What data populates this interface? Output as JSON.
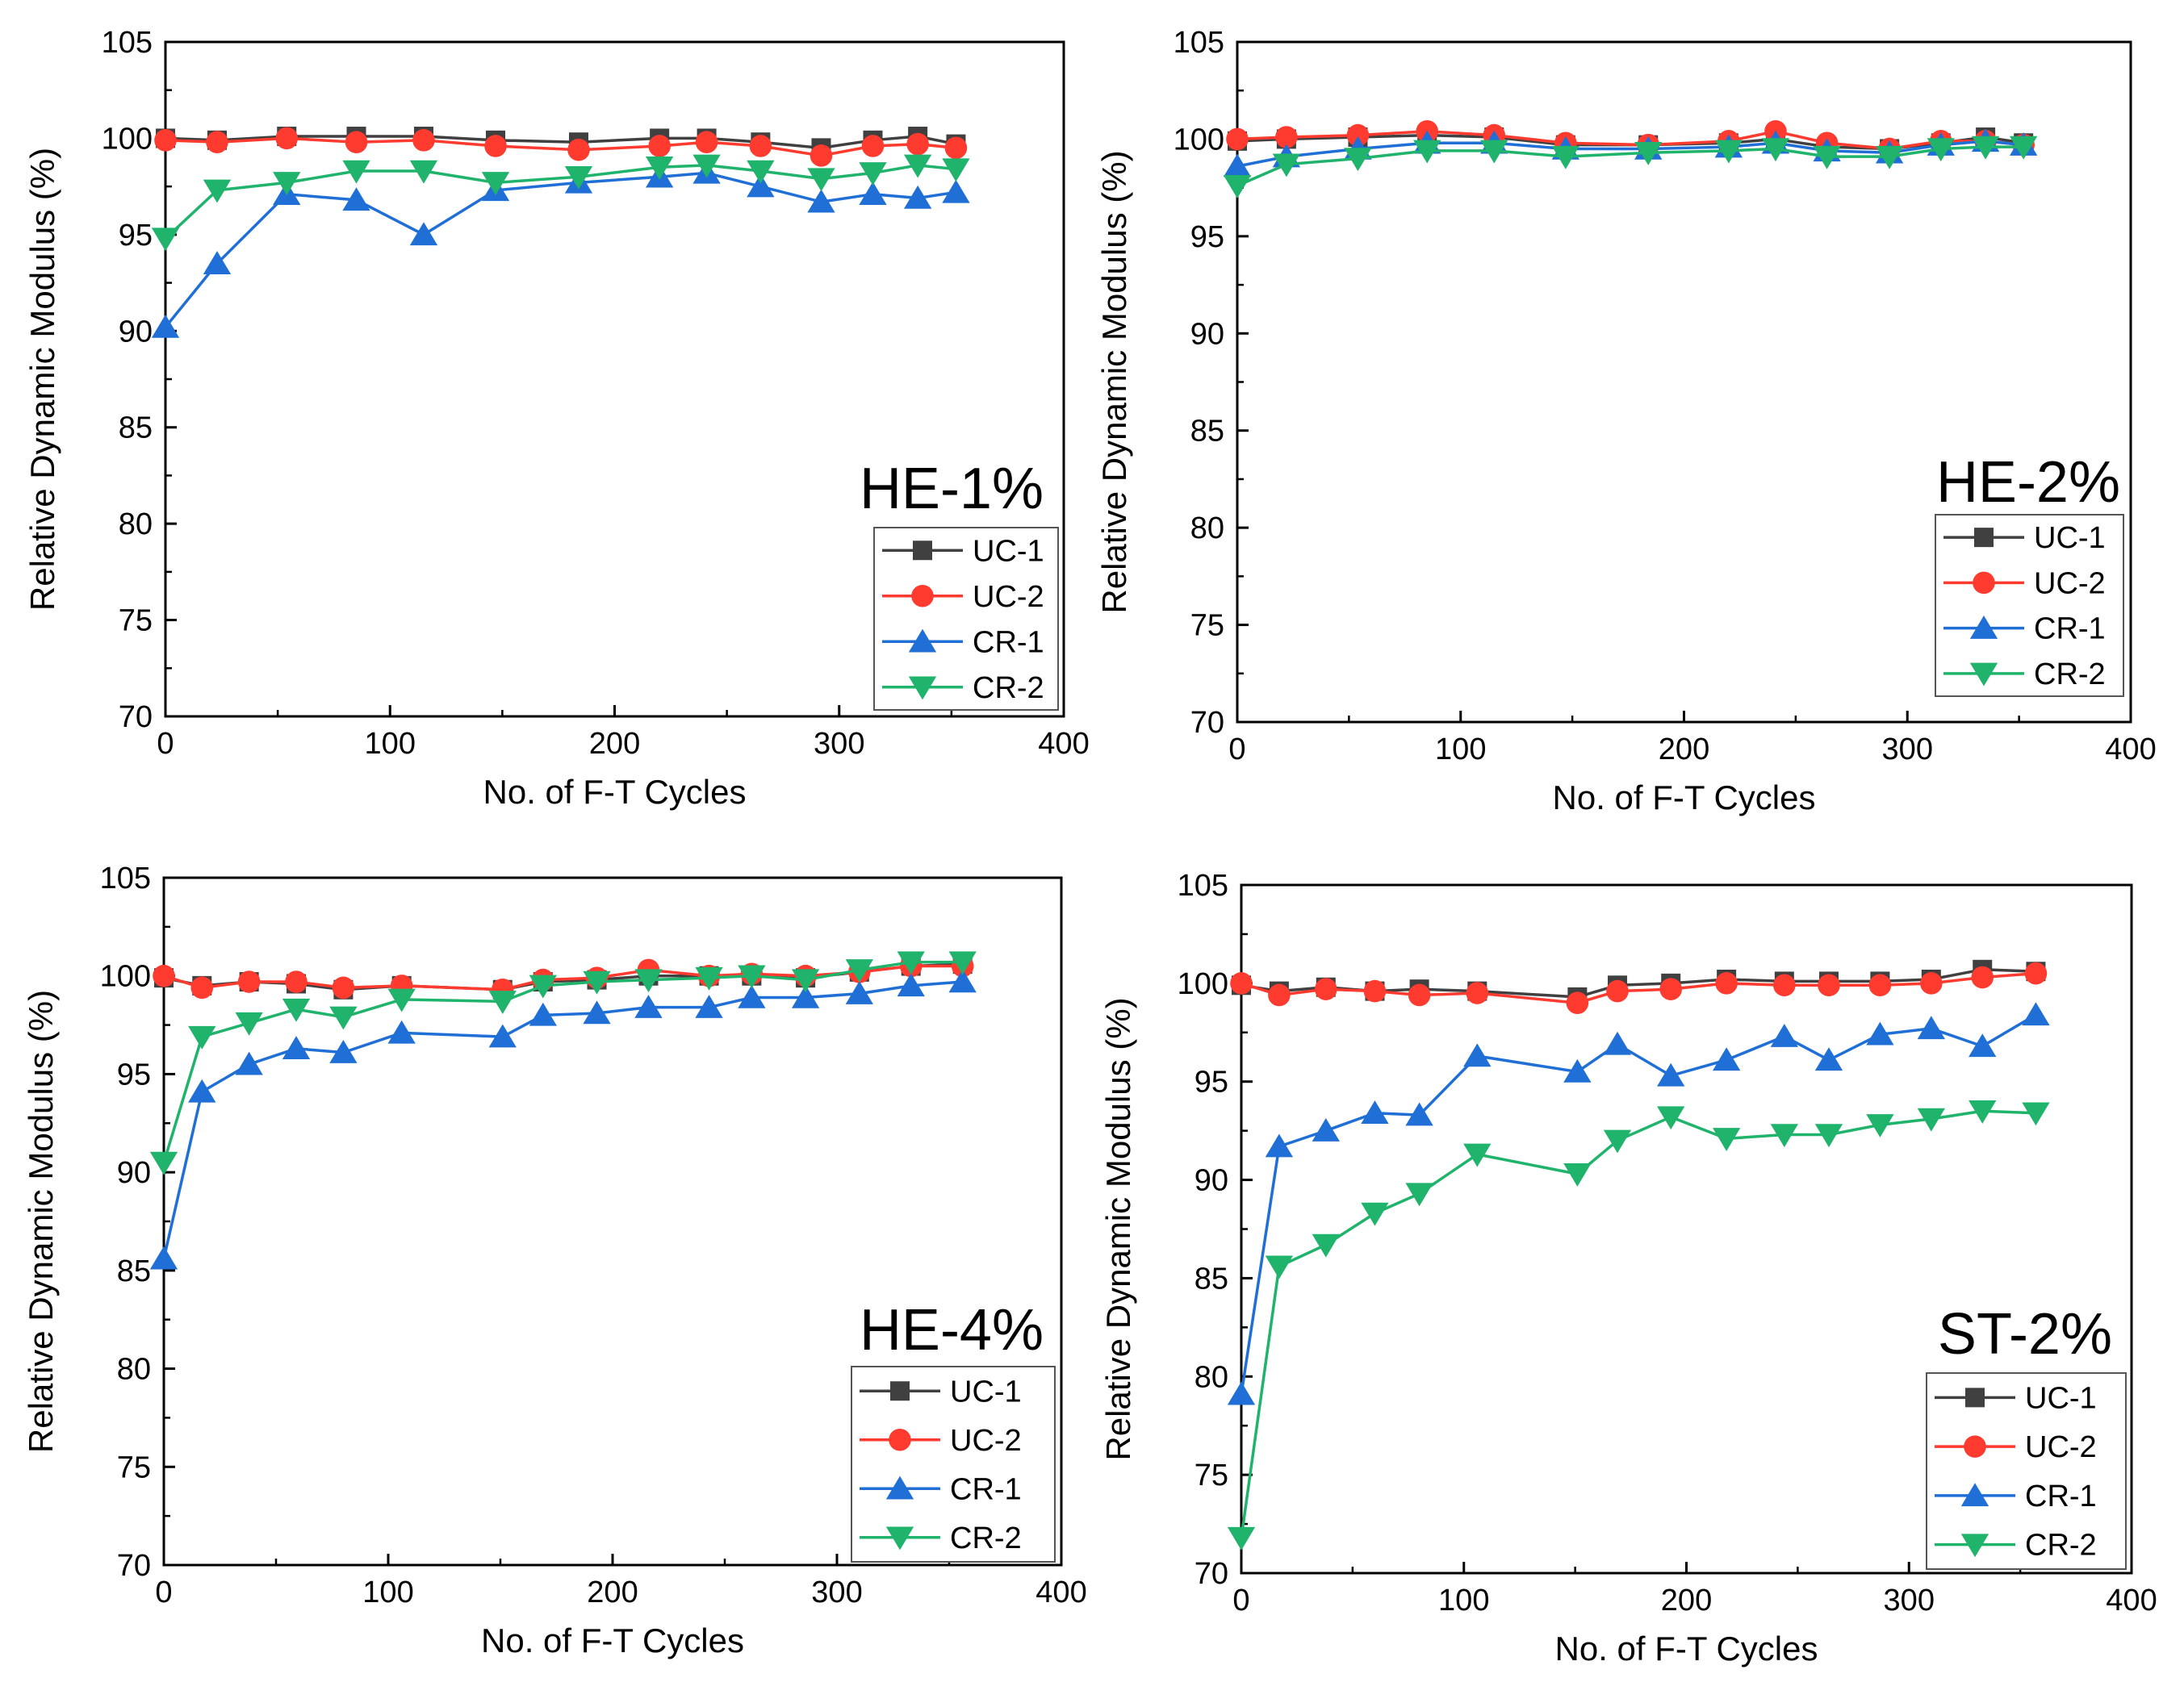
{
  "chart_data": [
    {
      "type": "line",
      "title": "HE-1%",
      "xlabel": "No. of F-T Cycles",
      "ylabel": "Relative Dynamic Modulus (%)",
      "xlim": [
        0,
        400
      ],
      "ylim": [
        70,
        105
      ],
      "xticks": [
        "0",
        "100",
        "200",
        "300",
        "400"
      ],
      "yticks": [
        "70",
        "75",
        "80",
        "85",
        "90",
        "95",
        "100",
        "105"
      ],
      "legend_position": "bottom-right",
      "series": [
        {
          "name": "UC-1",
          "marker": "square",
          "color": "#404040",
          "x": [
            0,
            23,
            54,
            85,
            115,
            147,
            184,
            220,
            241,
            265,
            292,
            315,
            335,
            352
          ],
          "y": [
            100.0,
            99.9,
            100.1,
            100.1,
            100.1,
            99.9,
            99.8,
            100.0,
            100.0,
            99.8,
            99.5,
            99.9,
            100.1,
            99.7
          ]
        },
        {
          "name": "UC-2",
          "marker": "circle",
          "color": "#ff3b30",
          "x": [
            0,
            23,
            54,
            85,
            115,
            147,
            184,
            220,
            241,
            265,
            292,
            315,
            335,
            352
          ],
          "y": [
            99.9,
            99.8,
            100.0,
            99.8,
            99.9,
            99.6,
            99.4,
            99.6,
            99.8,
            99.6,
            99.1,
            99.6,
            99.7,
            99.5
          ]
        },
        {
          "name": "CR-1",
          "marker": "triangle-up",
          "color": "#1f6fd6",
          "x": [
            0,
            23,
            54,
            85,
            115,
            147,
            184,
            220,
            241,
            265,
            292,
            315,
            335,
            352
          ],
          "y": [
            90.2,
            93.5,
            97.1,
            96.8,
            95.0,
            97.3,
            97.7,
            98.0,
            98.2,
            97.5,
            96.7,
            97.1,
            96.9,
            97.2
          ]
        },
        {
          "name": "CR-2",
          "marker": "triangle-down",
          "color": "#1fb36b",
          "x": [
            0,
            23,
            54,
            85,
            115,
            147,
            184,
            220,
            241,
            265,
            292,
            315,
            335,
            352
          ],
          "y": [
            94.8,
            97.3,
            97.7,
            98.3,
            98.3,
            97.7,
            98.0,
            98.5,
            98.6,
            98.3,
            97.9,
            98.2,
            98.6,
            98.4
          ]
        }
      ]
    },
    {
      "type": "line",
      "title": "HE-2%",
      "xlabel": "No. of F-T Cycles",
      "ylabel": "Relative Dynamic Modulus (%)",
      "xlim": [
        0,
        400
      ],
      "ylim": [
        70,
        105
      ],
      "xticks": [
        "0",
        "100",
        "200",
        "300",
        "400"
      ],
      "yticks": [
        "70",
        "75",
        "80",
        "85",
        "90",
        "95",
        "100",
        "105"
      ],
      "legend_position": "bottom-right",
      "series": [
        {
          "name": "UC-1",
          "marker": "square",
          "color": "#404040",
          "x": [
            0,
            22,
            54,
            85,
            115,
            147,
            184,
            220,
            241,
            264,
            292,
            315,
            335,
            352
          ],
          "y": [
            99.9,
            100.0,
            100.1,
            100.2,
            100.1,
            99.7,
            99.7,
            99.8,
            100.0,
            99.6,
            99.5,
            99.8,
            100.1,
            99.8
          ]
        },
        {
          "name": "UC-2",
          "marker": "circle",
          "color": "#ff3b30",
          "x": [
            0,
            22,
            54,
            85,
            115,
            147,
            184,
            220,
            241,
            264,
            292,
            315,
            335,
            352
          ],
          "y": [
            100.0,
            100.1,
            100.2,
            100.4,
            100.2,
            99.8,
            99.7,
            99.9,
            100.4,
            99.8,
            99.5,
            99.9,
            99.9,
            99.7
          ]
        },
        {
          "name": "CR-1",
          "marker": "triangle-up",
          "color": "#1f6fd6",
          "x": [
            0,
            22,
            54,
            85,
            115,
            147,
            184,
            220,
            241,
            264,
            292,
            315,
            335,
            352
          ],
          "y": [
            98.6,
            99.1,
            99.5,
            99.8,
            99.8,
            99.5,
            99.5,
            99.6,
            99.8,
            99.4,
            99.3,
            99.7,
            99.9,
            99.7
          ]
        },
        {
          "name": "CR-2",
          "marker": "triangle-down",
          "color": "#1fb36b",
          "x": [
            0,
            22,
            54,
            85,
            115,
            147,
            184,
            220,
            241,
            264,
            292,
            315,
            335,
            352
          ],
          "y": [
            97.6,
            98.7,
            99.0,
            99.4,
            99.4,
            99.1,
            99.3,
            99.4,
            99.5,
            99.1,
            99.1,
            99.5,
            99.6,
            99.6
          ]
        }
      ]
    },
    {
      "type": "line",
      "title": "HE-4%",
      "xlabel": "No. of F-T Cycles",
      "ylabel": "Relative Dynamic Modulus (%)",
      "xlim": [
        0,
        400
      ],
      "ylim": [
        70,
        105
      ],
      "xticks": [
        "0",
        "100",
        "200",
        "300",
        "400"
      ],
      "yticks": [
        "70",
        "75",
        "80",
        "85",
        "90",
        "95",
        "100",
        "105"
      ],
      "legend_position": "bottom-right",
      "series": [
        {
          "name": "UC-1",
          "marker": "square",
          "color": "#404040",
          "x": [
            0,
            17,
            38,
            59,
            80,
            106,
            151,
            169,
            193,
            216,
            243,
            262,
            286,
            310,
            333,
            356
          ],
          "y": [
            99.9,
            99.5,
            99.7,
            99.6,
            99.3,
            99.5,
            99.3,
            99.7,
            99.8,
            100.0,
            100.0,
            100.0,
            99.9,
            100.2,
            100.5,
            100.6
          ]
        },
        {
          "name": "UC-2",
          "marker": "circle",
          "color": "#ff3b30",
          "x": [
            0,
            17,
            38,
            59,
            80,
            106,
            151,
            169,
            193,
            216,
            243,
            262,
            286,
            310,
            333,
            356
          ],
          "y": [
            100.0,
            99.4,
            99.7,
            99.7,
            99.4,
            99.5,
            99.3,
            99.8,
            99.9,
            100.3,
            100.0,
            100.1,
            100.0,
            100.2,
            100.5,
            100.5
          ]
        },
        {
          "name": "CR-1",
          "marker": "triangle-up",
          "color": "#1f6fd6",
          "x": [
            0,
            17,
            38,
            59,
            80,
            106,
            151,
            169,
            193,
            216,
            243,
            262,
            286,
            310,
            333,
            356
          ],
          "y": [
            85.6,
            94.1,
            95.5,
            96.3,
            96.1,
            97.1,
            96.9,
            98.0,
            98.1,
            98.4,
            98.4,
            98.9,
            98.9,
            99.1,
            99.5,
            99.7
          ]
        },
        {
          "name": "CR-2",
          "marker": "triangle-down",
          "color": "#1fb36b",
          "x": [
            0,
            17,
            38,
            59,
            80,
            106,
            151,
            169,
            193,
            216,
            243,
            262,
            286,
            310,
            333,
            356
          ],
          "y": [
            90.5,
            96.9,
            97.6,
            98.3,
            97.9,
            98.8,
            98.7,
            99.5,
            99.7,
            99.8,
            99.9,
            100.0,
            99.8,
            100.3,
            100.7,
            100.7
          ]
        }
      ]
    },
    {
      "type": "line",
      "title": "ST-2%",
      "xlabel": "No. of F-T Cycles",
      "ylabel": "Relative Dynamic Modulus (%)",
      "xlim": [
        0,
        400
      ],
      "ylim": [
        70,
        105
      ],
      "xticks": [
        "0",
        "100",
        "200",
        "300",
        "400"
      ],
      "yticks": [
        "70",
        "75",
        "80",
        "85",
        "90",
        "95",
        "100",
        "105"
      ],
      "legend_position": "bottom-right",
      "series": [
        {
          "name": "UC-1",
          "marker": "square",
          "color": "#404040",
          "x": [
            0,
            17,
            38,
            60,
            80,
            106,
            151,
            169,
            193,
            218,
            244,
            264,
            287,
            310,
            333,
            357
          ],
          "y": [
            99.9,
            99.6,
            99.8,
            99.6,
            99.7,
            99.6,
            99.3,
            99.9,
            100.0,
            100.2,
            100.1,
            100.1,
            100.1,
            100.2,
            100.7,
            100.6
          ]
        },
        {
          "name": "UC-2",
          "marker": "circle",
          "color": "#ff3b30",
          "x": [
            0,
            17,
            38,
            60,
            80,
            106,
            151,
            169,
            193,
            218,
            244,
            264,
            287,
            310,
            333,
            357
          ],
          "y": [
            100.0,
            99.4,
            99.7,
            99.6,
            99.4,
            99.5,
            99.0,
            99.6,
            99.7,
            100.0,
            99.9,
            99.9,
            99.9,
            100.0,
            100.3,
            100.5
          ]
        },
        {
          "name": "CR-1",
          "marker": "triangle-up",
          "color": "#1f6fd6",
          "x": [
            0,
            17,
            38,
            60,
            80,
            106,
            151,
            169,
            193,
            218,
            244,
            264,
            287,
            310,
            333,
            357
          ],
          "y": [
            79.1,
            91.7,
            92.5,
            93.4,
            93.3,
            96.3,
            95.5,
            96.9,
            95.3,
            96.1,
            97.3,
            96.1,
            97.4,
            97.7,
            96.8,
            98.4
          ]
        },
        {
          "name": "CR-2",
          "marker": "triangle-down",
          "color": "#1fb36b",
          "x": [
            0,
            17,
            38,
            60,
            80,
            106,
            151,
            169,
            193,
            218,
            244,
            264,
            287,
            310,
            333,
            357
          ],
          "y": [
            71.8,
            85.6,
            86.7,
            88.3,
            89.3,
            91.3,
            90.3,
            92.0,
            93.2,
            92.1,
            92.3,
            92.3,
            92.8,
            93.1,
            93.5,
            93.4
          ]
        }
      ]
    }
  ]
}
